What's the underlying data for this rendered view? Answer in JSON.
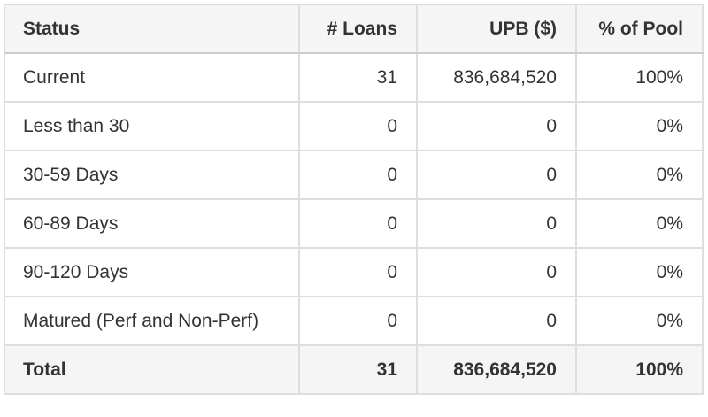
{
  "chart_data": {
    "type": "table",
    "columns": [
      "Status",
      "# Loans",
      "UPB ($)",
      "% of Pool"
    ],
    "rows": [
      [
        "Current",
        "31",
        "836,684,520",
        "100%"
      ],
      [
        "Less than 30",
        "0",
        "0",
        "0%"
      ],
      [
        "30-59 Days",
        "0",
        "0",
        "0%"
      ],
      [
        "60-89 Days",
        "0",
        "0",
        "0%"
      ],
      [
        "90-120 Days",
        "0",
        "0",
        "0%"
      ],
      [
        "Matured (Perf and Non-Perf)",
        "0",
        "0",
        "0%"
      ]
    ],
    "total_row": [
      "Total",
      "31",
      "836,684,520",
      "100%"
    ]
  },
  "colors": {
    "header_bg": "#f5f5f5",
    "row_bg": "#ffffff",
    "border": "#dedede",
    "border_strong": "#cdcdcd",
    "text": "#333333"
  }
}
